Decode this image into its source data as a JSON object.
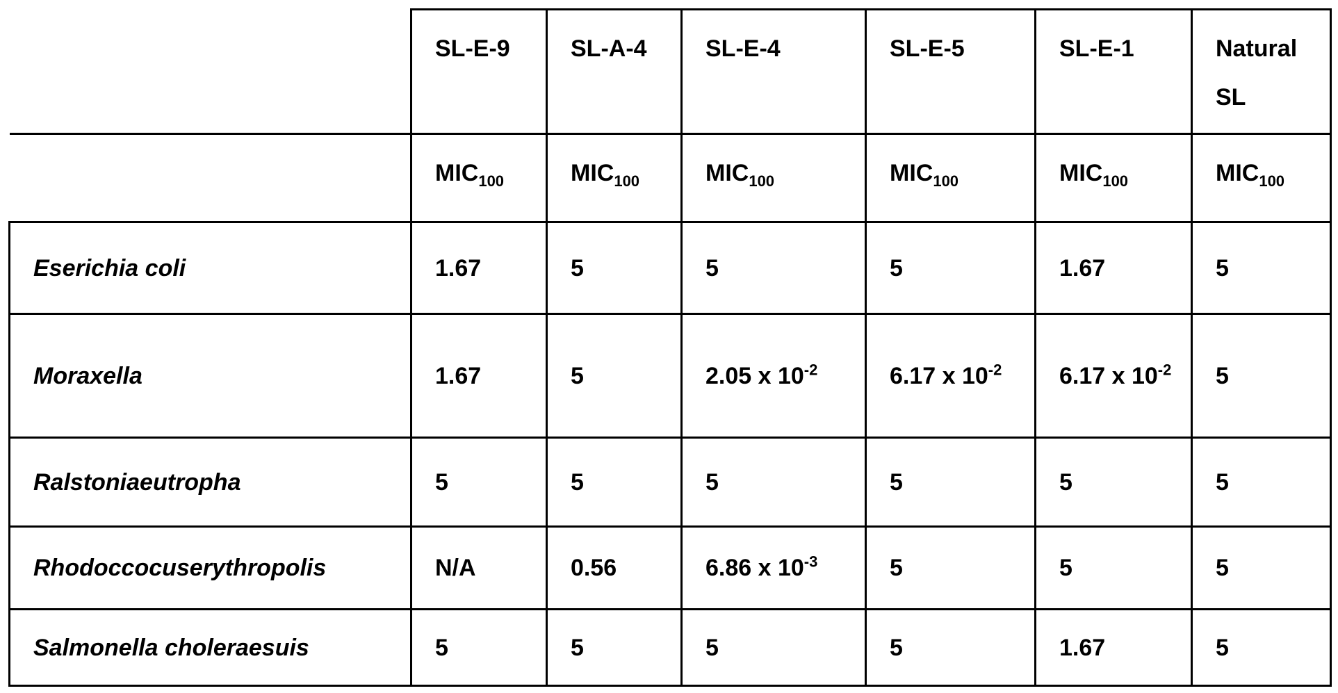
{
  "table": {
    "columns": [
      "SL-E-9",
      "SL-A-4",
      "SL-E-4",
      "SL-E-5",
      "SL-E-1",
      "Natural SL"
    ],
    "units": [
      {
        "base": "MIC",
        "sub": "100"
      },
      {
        "base": "MIC",
        "sub": "100"
      },
      {
        "base": "MIC",
        "sub": "100"
      },
      {
        "base": "MIC",
        "sub": "100"
      },
      {
        "base": "MIC",
        "sub": "100"
      },
      {
        "base": "MIC",
        "sub": "100"
      }
    ],
    "rows": [
      {
        "organism": "Eserichia coli",
        "values": [
          1.67,
          5,
          5,
          5,
          1.67,
          5
        ]
      },
      {
        "organism": "Moraxella",
        "values": [
          1.67,
          5,
          {
            "base": "2.05 x 10",
            "sup": "-2"
          },
          {
            "base": "6.17 x 10",
            "sup": "-2"
          },
          {
            "base": "6.17 x 10",
            "sup": "-2"
          },
          5
        ]
      },
      {
        "organism": "Ralstoniaeutropha",
        "values": [
          5,
          5,
          5,
          5,
          5,
          5
        ]
      },
      {
        "organism": "Rhodoccocuserythropolis",
        "values": [
          "N/A",
          0.56,
          {
            "base": "6.86 x 10",
            "sup": "-3"
          },
          5,
          5,
          5
        ]
      },
      {
        "organism": "Salmonella choleraesuis",
        "values": [
          5,
          5,
          5,
          5,
          1.67,
          5
        ]
      }
    ]
  }
}
